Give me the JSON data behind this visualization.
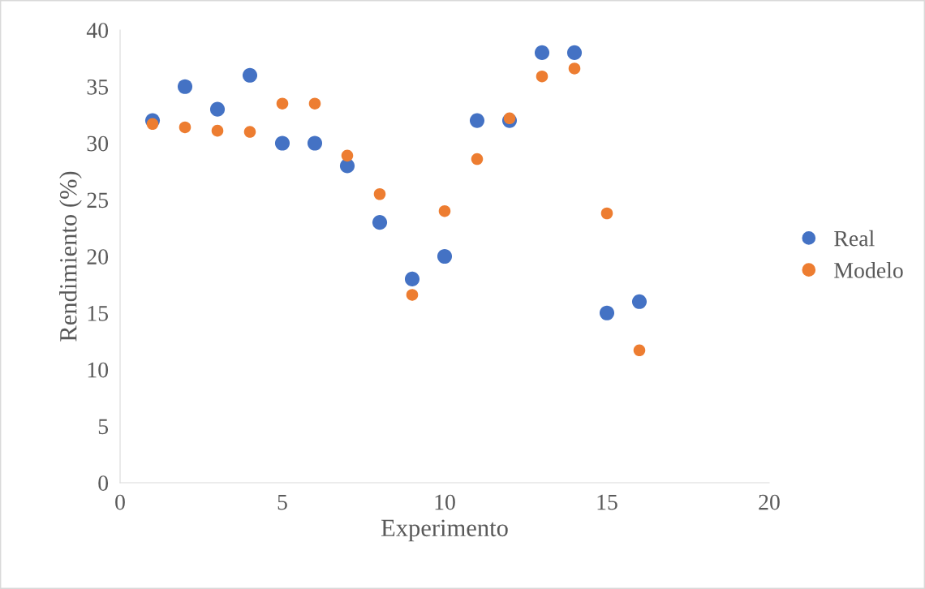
{
  "chart_data": {
    "type": "scatter",
    "xlabel": "Experimento",
    "ylabel": "Rendimiento (%)",
    "x": [
      1,
      2,
      3,
      4,
      5,
      6,
      7,
      8,
      9,
      10,
      11,
      12,
      13,
      14,
      15,
      16
    ],
    "series": [
      {
        "name": "Real",
        "color": "#4472c4",
        "values": [
          32,
          35,
          33,
          36,
          30,
          30,
          28,
          23,
          18,
          20,
          32,
          32,
          38,
          38,
          15,
          16
        ]
      },
      {
        "name": "Modelo",
        "color": "#ed7d31",
        "values": [
          31.7,
          31.4,
          31.1,
          31.0,
          33.5,
          33.5,
          28.9,
          25.5,
          16.6,
          24.0,
          28.6,
          32.2,
          35.9,
          36.6,
          23.8,
          11.7
        ]
      }
    ],
    "xlim": [
      0,
      20
    ],
    "xticks": [
      0,
      5,
      10,
      15,
      20
    ],
    "ylim": [
      0,
      40
    ],
    "yticks": [
      0,
      5,
      10,
      15,
      20,
      25,
      30,
      35,
      40
    ],
    "grid": false,
    "legend": "right",
    "marker": "circle"
  }
}
